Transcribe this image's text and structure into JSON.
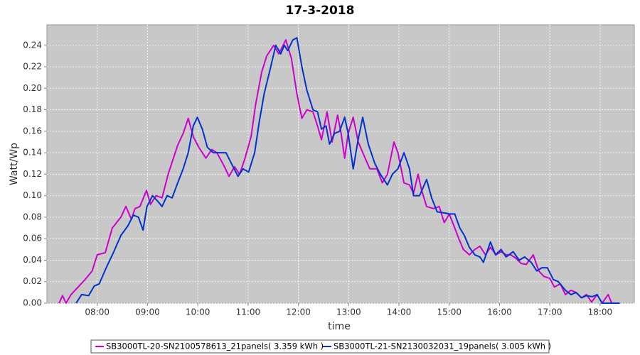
{
  "chart_data": {
    "type": "line",
    "title": "17-3-2018",
    "x_label": "time",
    "y_label": "Watt/Wp",
    "xlim": [
      7.0,
      18.68
    ],
    "ylim": [
      0,
      0.259
    ],
    "xticks": [
      {
        "value": 8,
        "label": "08:00"
      },
      {
        "value": 9,
        "label": "09:00"
      },
      {
        "value": 10,
        "label": "10:00"
      },
      {
        "value": 11,
        "label": "11:00"
      },
      {
        "value": 12,
        "label": "12:00"
      },
      {
        "value": 13,
        "label": "13:00"
      },
      {
        "value": 14,
        "label": "14:00"
      },
      {
        "value": 15,
        "label": "15:00"
      },
      {
        "value": 16,
        "label": "16:00"
      },
      {
        "value": 17,
        "label": "17:00"
      },
      {
        "value": 18,
        "label": "18:00"
      }
    ],
    "yticks": [
      {
        "value": 0,
        "label": "0.00"
      },
      {
        "value": 0.02,
        "label": "0.02"
      },
      {
        "value": 0.04,
        "label": "0.04"
      },
      {
        "value": 0.06,
        "label": "0.06"
      },
      {
        "value": 0.08,
        "label": "0.08"
      },
      {
        "value": 0.1,
        "label": "0.10"
      },
      {
        "value": 0.12,
        "label": "0.12"
      },
      {
        "value": 0.14,
        "label": "0.14"
      },
      {
        "value": 0.16,
        "label": "0.16"
      },
      {
        "value": 0.18,
        "label": "0.18"
      },
      {
        "value": 0.2,
        "label": "0.20"
      },
      {
        "value": 0.22,
        "label": "0.22"
      },
      {
        "value": 0.24,
        "label": "0.24"
      }
    ],
    "grid": true,
    "legend": "bottom",
    "series": [
      {
        "name": "SB3000TL-20-SN2100578613_21panels( 3.359 kWh )",
        "color": "#cc00cc",
        "x": [
          7.24,
          7.31,
          7.38,
          7.48,
          7.62,
          7.76,
          7.9,
          8.0,
          8.16,
          8.3,
          8.47,
          8.57,
          8.68,
          8.75,
          8.85,
          8.98,
          9.06,
          9.17,
          9.29,
          9.41,
          9.6,
          9.71,
          9.81,
          9.91,
          10.02,
          10.16,
          10.28,
          10.38,
          10.52,
          10.62,
          10.73,
          10.83,
          10.94,
          11.06,
          11.15,
          11.27,
          11.37,
          11.51,
          11.61,
          11.75,
          11.86,
          11.97,
          12.07,
          12.17,
          12.29,
          12.38,
          12.46,
          12.57,
          12.67,
          12.78,
          12.85,
          12.92,
          12.99,
          13.09,
          13.19,
          13.3,
          13.42,
          13.56,
          13.67,
          13.77,
          13.9,
          13.98,
          14.1,
          14.21,
          14.29,
          14.38,
          14.45,
          14.55,
          14.69,
          14.8,
          14.9,
          15.0,
          15.11,
          15.19,
          15.28,
          15.4,
          15.51,
          15.61,
          15.72,
          15.82,
          15.93,
          16.03,
          16.13,
          16.22,
          16.32,
          16.43,
          16.53,
          16.67,
          16.78,
          16.88,
          17.0,
          17.09,
          17.21,
          17.31,
          17.42,
          17.52,
          17.63,
          17.73,
          17.83,
          17.94,
          18.04,
          18.16,
          18.23
        ],
        "values": [
          0,
          0.007,
          0,
          0.008,
          0.015,
          0.022,
          0.03,
          0.045,
          0.047,
          0.07,
          0.08,
          0.09,
          0.078,
          0.088,
          0.09,
          0.105,
          0.092,
          0.1,
          0.098,
          0.12,
          0.147,
          0.158,
          0.172,
          0.155,
          0.145,
          0.135,
          0.143,
          0.14,
          0.128,
          0.118,
          0.127,
          0.12,
          0.135,
          0.155,
          0.185,
          0.215,
          0.23,
          0.24,
          0.232,
          0.245,
          0.228,
          0.195,
          0.172,
          0.18,
          0.178,
          0.165,
          0.152,
          0.178,
          0.15,
          0.175,
          0.158,
          0.135,
          0.158,
          0.173,
          0.15,
          0.138,
          0.125,
          0.125,
          0.112,
          0.12,
          0.15,
          0.14,
          0.112,
          0.11,
          0.102,
          0.12,
          0.105,
          0.09,
          0.088,
          0.09,
          0.075,
          0.083,
          0.07,
          0.06,
          0.05,
          0.045,
          0.05,
          0.053,
          0.045,
          0.052,
          0.045,
          0.048,
          0.045,
          0.045,
          0.042,
          0.037,
          0.036,
          0.045,
          0.03,
          0.025,
          0.023,
          0.015,
          0.018,
          0.008,
          0.012,
          0.01,
          0.005,
          0.008,
          0.001,
          0.008,
          0,
          0.008,
          0
        ]
      },
      {
        "name": "SB3000TL-21-SN2130032031_19panels( 3.005 kWh )",
        "color": "#0033cc",
        "x": [
          7.58,
          7.69,
          7.83,
          7.94,
          8.04,
          8.18,
          8.33,
          8.47,
          8.61,
          8.72,
          8.82,
          8.91,
          8.99,
          9.1,
          9.2,
          9.29,
          9.39,
          9.49,
          9.6,
          9.71,
          9.81,
          9.91,
          9.99,
          10.09,
          10.19,
          10.31,
          10.45,
          10.56,
          10.69,
          10.8,
          10.9,
          11.01,
          11.13,
          11.22,
          11.32,
          11.44,
          11.55,
          11.65,
          11.72,
          11.79,
          11.89,
          11.97,
          12.07,
          12.17,
          12.29,
          12.38,
          12.46,
          12.55,
          12.62,
          12.72,
          12.82,
          12.92,
          12.99,
          13.09,
          13.18,
          13.28,
          13.39,
          13.52,
          13.63,
          13.77,
          13.87,
          13.98,
          14.1,
          14.21,
          14.29,
          14.41,
          14.55,
          14.65,
          14.76,
          14.9,
          15.01,
          15.11,
          15.21,
          15.3,
          15.4,
          15.51,
          15.61,
          15.68,
          15.82,
          15.92,
          16.03,
          16.13,
          16.27,
          16.39,
          16.5,
          16.63,
          16.74,
          16.84,
          16.95,
          17.07,
          17.17,
          17.31,
          17.42,
          17.52,
          17.63,
          17.73,
          17.84,
          17.94,
          18.04,
          18.3,
          18.39
        ],
        "values": [
          0,
          0.008,
          0.007,
          0.016,
          0.018,
          0.033,
          0.048,
          0.063,
          0.072,
          0.082,
          0.08,
          0.068,
          0.09,
          0.1,
          0.095,
          0.09,
          0.1,
          0.098,
          0.112,
          0.125,
          0.14,
          0.165,
          0.173,
          0.162,
          0.145,
          0.14,
          0.14,
          0.14,
          0.128,
          0.118,
          0.125,
          0.122,
          0.14,
          0.168,
          0.195,
          0.218,
          0.24,
          0.232,
          0.24,
          0.235,
          0.245,
          0.247,
          0.22,
          0.198,
          0.18,
          0.178,
          0.162,
          0.165,
          0.148,
          0.158,
          0.16,
          0.173,
          0.158,
          0.125,
          0.15,
          0.173,
          0.148,
          0.13,
          0.12,
          0.11,
          0.12,
          0.125,
          0.14,
          0.125,
          0.1,
          0.1,
          0.115,
          0.098,
          0.085,
          0.084,
          0.083,
          0.083,
          0.07,
          0.063,
          0.052,
          0.045,
          0.043,
          0.038,
          0.057,
          0.045,
          0.05,
          0.043,
          0.048,
          0.04,
          0.043,
          0.038,
          0.03,
          0.033,
          0.033,
          0.022,
          0.02,
          0.012,
          0.008,
          0.01,
          0.005,
          0.007,
          0.006,
          0.008,
          0,
          0,
          0
        ]
      }
    ]
  }
}
